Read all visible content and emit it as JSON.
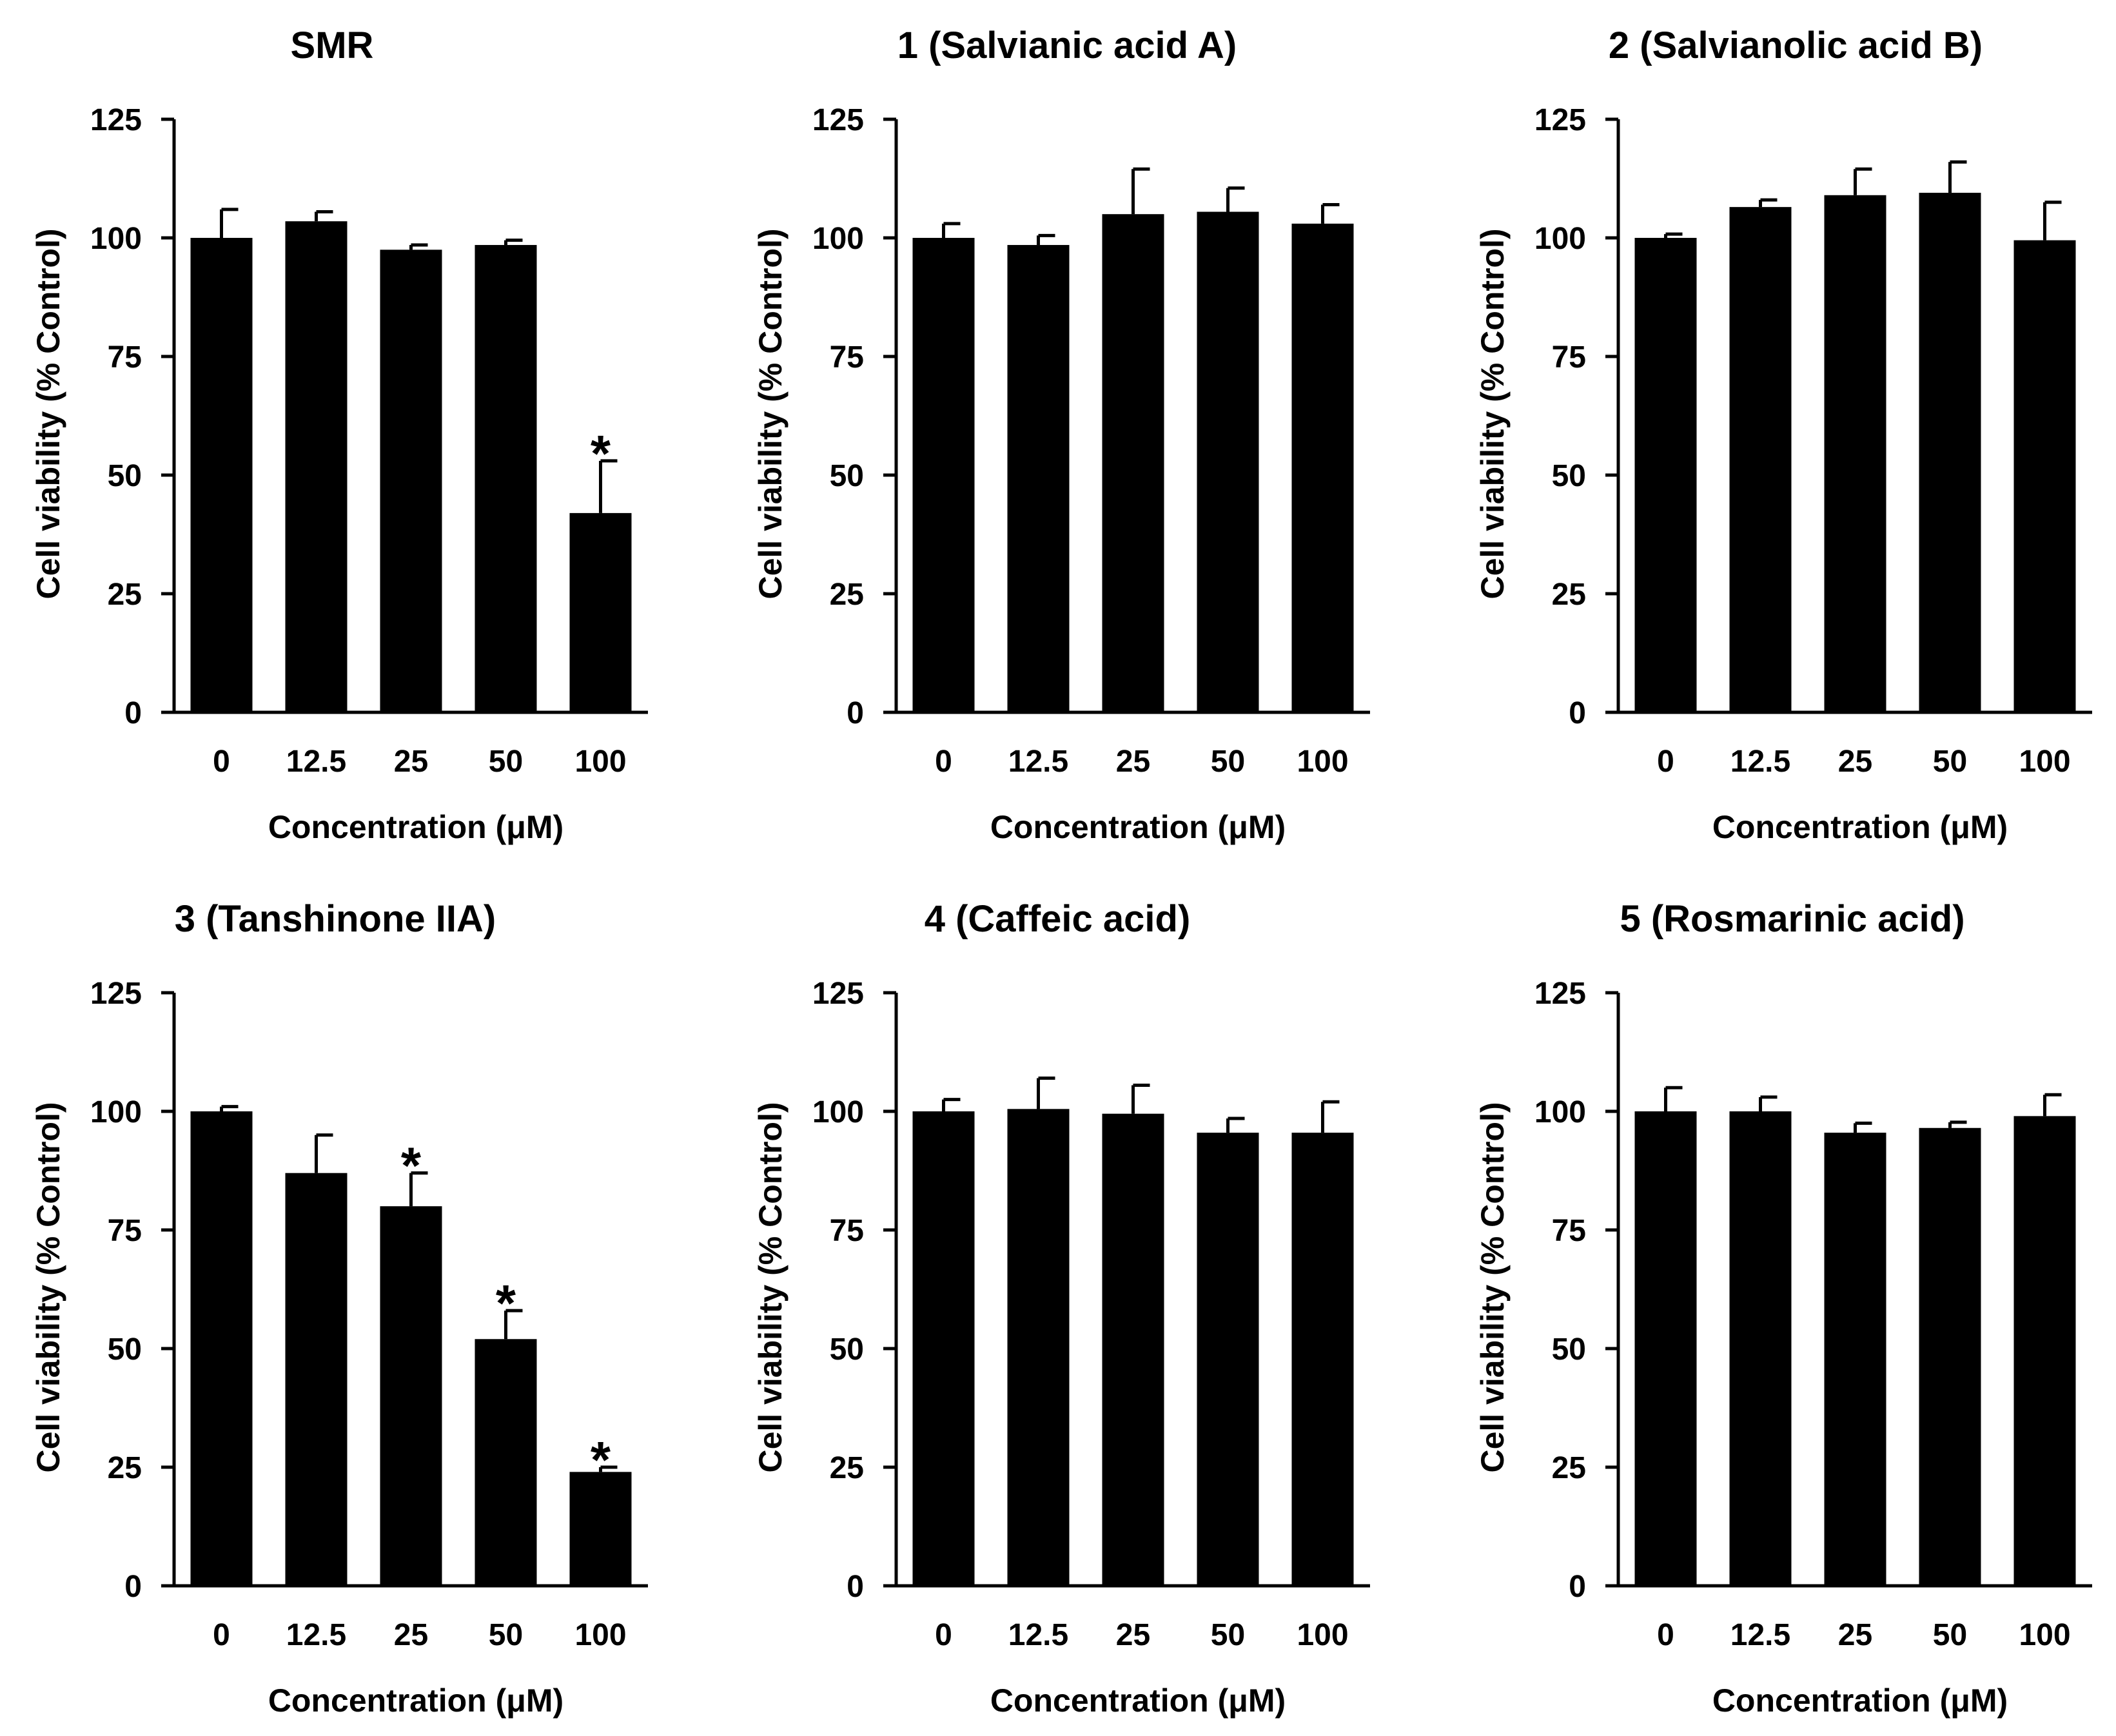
{
  "figure": {
    "panels_count": 6,
    "bar_color": "#000000",
    "axis_color": "#000000",
    "background_color": "#ffffff"
  },
  "chart_data": [
    {
      "type": "bar",
      "title": "SMR",
      "xlabel": "Concentration (μM)",
      "ylabel": "Cell viability (% Control)",
      "categories": [
        "0",
        "12.5",
        "25",
        "50",
        "100"
      ],
      "values": [
        100,
        103.5,
        97.5,
        98.5,
        42
      ],
      "errors": [
        6,
        2,
        1,
        1,
        11
      ],
      "significance": [
        "",
        "",
        "",
        "",
        "*"
      ],
      "ylim": [
        0,
        125
      ],
      "yticks": [
        "0",
        "25",
        "50",
        "75",
        "100",
        "125"
      ]
    },
    {
      "type": "bar",
      "title": "1 (Salvianic acid A)",
      "xlabel": "Concentration (μM)",
      "ylabel": "Cell viability (% Control)",
      "categories": [
        "0",
        "12.5",
        "25",
        "50",
        "100"
      ],
      "values": [
        100,
        98.5,
        105,
        105.5,
        103
      ],
      "errors": [
        3,
        2,
        9.5,
        5,
        4
      ],
      "significance": [
        "",
        "",
        "",
        "",
        ""
      ],
      "ylim": [
        0,
        125
      ],
      "yticks": [
        "0",
        "25",
        "50",
        "75",
        "100",
        "125"
      ]
    },
    {
      "type": "bar",
      "title": "2 (Salvianolic acid B)",
      "xlabel": "Concentration (μM)",
      "ylabel": "Cell viability (% Control)",
      "categories": [
        "0",
        "12.5",
        "25",
        "50",
        "100"
      ],
      "values": [
        100,
        106.5,
        109,
        109.5,
        99.5
      ],
      "errors": [
        0.8,
        1.5,
        5.5,
        6.5,
        8
      ],
      "significance": [
        "",
        "",
        "",
        "",
        ""
      ],
      "ylim": [
        0,
        125
      ],
      "yticks": [
        "0",
        "25",
        "50",
        "75",
        "100",
        "125"
      ]
    },
    {
      "type": "bar",
      "title": "3 (Tanshinone IIA)",
      "xlabel": "Concentration (μM)",
      "ylabel": "Cell viability (% Control)",
      "categories": [
        "0",
        "12.5",
        "25",
        "50",
        "100"
      ],
      "values": [
        100,
        87,
        80,
        52,
        24
      ],
      "errors": [
        1,
        8,
        7,
        6,
        1
      ],
      "significance": [
        "",
        "",
        "*",
        "*",
        "*"
      ],
      "ylim": [
        0,
        125
      ],
      "yticks": [
        "0",
        "25",
        "50",
        "75",
        "100",
        "125"
      ]
    },
    {
      "type": "bar",
      "title": "4 (Caffeic acid)",
      "xlabel": "Concentration (μM)",
      "ylabel": "Cell viability (% Control)",
      "categories": [
        "0",
        "12.5",
        "25",
        "50",
        "100"
      ],
      "values": [
        100,
        100.5,
        99.5,
        95.5,
        95.5
      ],
      "errors": [
        2.5,
        6.5,
        6,
        3,
        6.5
      ],
      "significance": [
        "",
        "",
        "",
        "",
        ""
      ],
      "ylim": [
        0,
        125
      ],
      "yticks": [
        "0",
        "25",
        "50",
        "75",
        "100",
        "125"
      ]
    },
    {
      "type": "bar",
      "title": "5 (Rosmarinic acid)",
      "xlabel": "Concentration (μM)",
      "ylabel": "Cell viability (% Control)",
      "categories": [
        "0",
        "12.5",
        "25",
        "50",
        "100"
      ],
      "values": [
        100,
        100,
        95.5,
        96.5,
        99
      ],
      "errors": [
        5,
        3,
        2,
        1.2,
        4.5
      ],
      "significance": [
        "",
        "",
        "",
        "",
        ""
      ],
      "ylim": [
        0,
        125
      ],
      "yticks": [
        "0",
        "25",
        "50",
        "75",
        "100",
        "125"
      ]
    }
  ]
}
